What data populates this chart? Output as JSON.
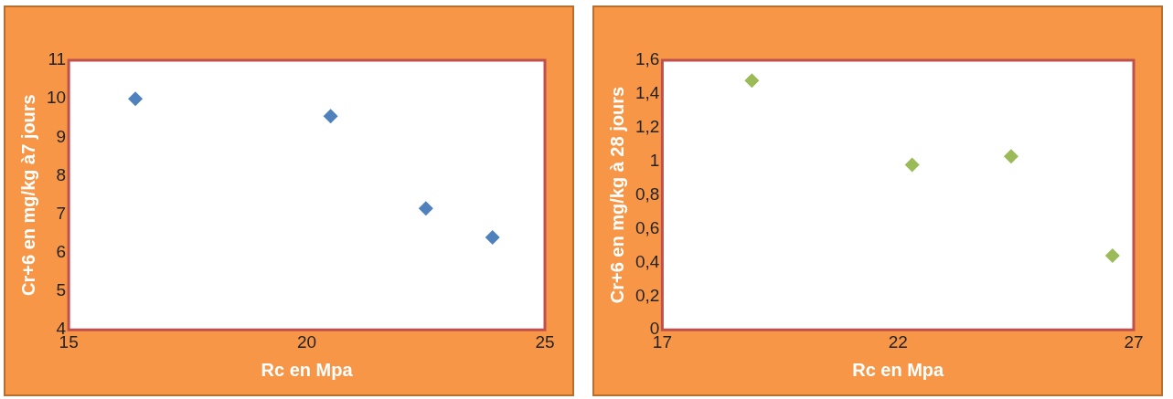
{
  "chart_data": [
    {
      "type": "scatter",
      "xlabel": "Rc en Mpa",
      "ylabel": "Cr+6 en mg/kg à7 jours",
      "marker": "diamond",
      "grid": false,
      "legend": false,
      "series": [
        {
          "color": "#4f81bd",
          "x": [
            16.4,
            20.5,
            22.5,
            23.9
          ],
          "values": [
            10.0,
            9.55,
            7.15,
            6.4
          ]
        }
      ],
      "xlim": [
        15,
        25
      ],
      "xticks": [
        15,
        20,
        25
      ],
      "ylim": [
        4,
        11
      ],
      "yticks": [
        4,
        5,
        6,
        7,
        8,
        9,
        10,
        11
      ]
    },
    {
      "type": "scatter",
      "xlabel": "Rc en Mpa",
      "ylabel": "Cr+6 en mg/kg à 28 jours",
      "marker": "diamond",
      "grid": false,
      "legend": false,
      "series": [
        {
          "color": "#9bbb59",
          "x": [
            18.9,
            22.3,
            24.4,
            26.55
          ],
          "values": [
            1.48,
            0.98,
            1.03,
            0.44
          ]
        }
      ],
      "xlim": [
        17,
        27
      ],
      "xticks": [
        17,
        22,
        27
      ],
      "ylim": [
        0,
        1.6
      ],
      "yticks": [
        0,
        {
          "value": 0.2,
          "label": "0,2"
        },
        {
          "value": 0.4,
          "label": "0,4"
        },
        {
          "value": 0.6,
          "label": "0,6"
        },
        {
          "value": 0.8,
          "label": "0,8"
        },
        1,
        {
          "value": 1.2,
          "label": "1,2"
        },
        {
          "value": 1.4,
          "label": "1,4"
        },
        {
          "value": 1.6,
          "label": "1,6"
        }
      ]
    }
  ]
}
